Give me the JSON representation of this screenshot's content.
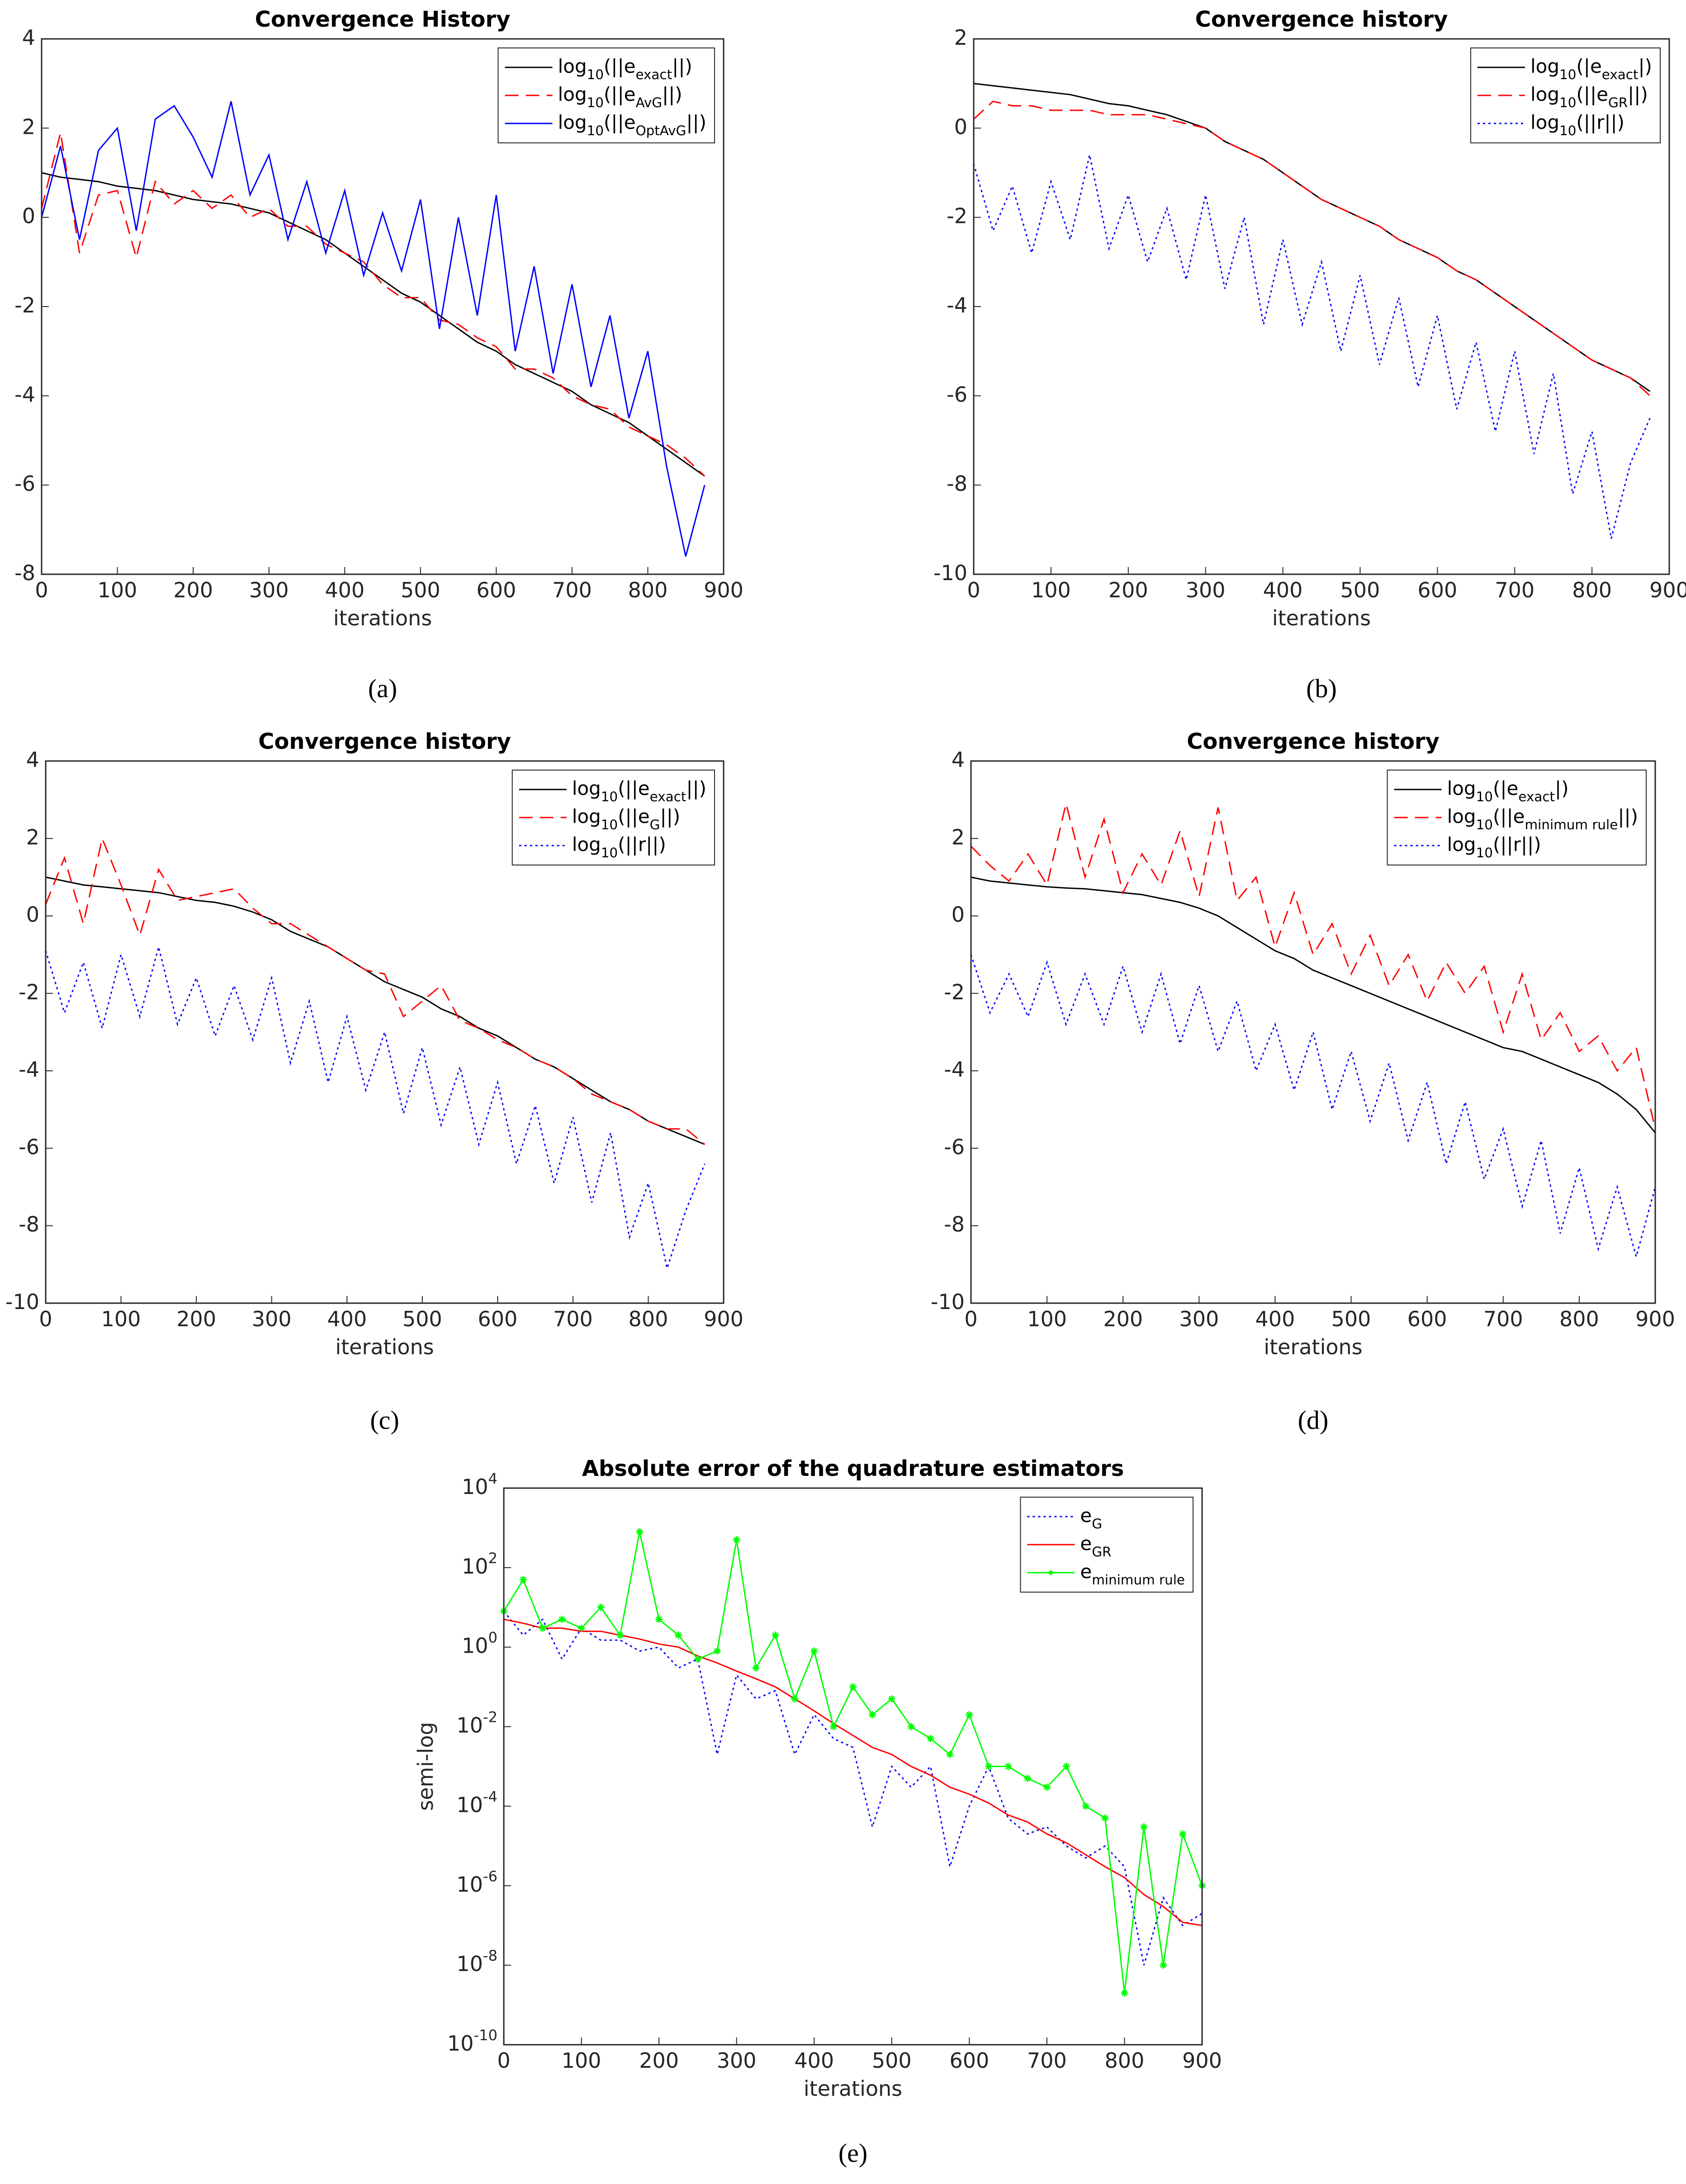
{
  "chart_data": [
    {
      "type": "line",
      "caption": "(a)",
      "title": "Convergence History",
      "x_label": "iterations",
      "xlim": [
        0,
        900
      ],
      "xticks": [
        0,
        100,
        200,
        300,
        400,
        500,
        600,
        700,
        800,
        900
      ],
      "ylim": [
        -8,
        4
      ],
      "yticks": [
        -8,
        -6,
        -4,
        -2,
        0,
        2,
        4
      ],
      "legend": "northeast",
      "x": [
        0,
        25,
        50,
        75,
        100,
        125,
        150,
        175,
        200,
        225,
        250,
        275,
        300,
        325,
        350,
        375,
        400,
        425,
        450,
        475,
        500,
        525,
        550,
        575,
        600,
        625,
        650,
        675,
        700,
        725,
        750,
        775,
        800,
        825,
        850,
        875
      ],
      "series": [
        {
          "name": "log_{10}(||e_{exact}||)",
          "color": "#000000",
          "dash": "solid",
          "values": [
            1.0,
            0.9,
            0.85,
            0.8,
            0.7,
            0.65,
            0.6,
            0.5,
            0.4,
            0.35,
            0.3,
            0.2,
            0.1,
            -0.1,
            -0.3,
            -0.5,
            -0.8,
            -1.1,
            -1.4,
            -1.7,
            -1.9,
            -2.2,
            -2.5,
            -2.8,
            -3.0,
            -3.3,
            -3.5,
            -3.7,
            -3.9,
            -4.2,
            -4.4,
            -4.6,
            -4.9,
            -5.2,
            -5.5,
            -5.8
          ]
        },
        {
          "name": "log_{10}(||e_{AvG}||)",
          "color": "#ff0000",
          "dash": "dashed",
          "values": [
            0.2,
            1.9,
            -0.8,
            0.5,
            0.6,
            -0.9,
            0.8,
            0.3,
            0.6,
            0.2,
            0.5,
            0.0,
            0.2,
            -0.2,
            -0.2,
            -0.6,
            -0.8,
            -1.0,
            -1.5,
            -1.8,
            -1.8,
            -2.3,
            -2.4,
            -2.7,
            -2.9,
            -3.4,
            -3.4,
            -3.6,
            -4.0,
            -4.2,
            -4.3,
            -4.7,
            -4.9,
            -5.1,
            -5.4,
            -5.8
          ]
        },
        {
          "name": "log_{10}(||e_{OptAvG}||)",
          "color": "#0000ff",
          "dash": "solid",
          "values": [
            0.0,
            1.6,
            -0.5,
            1.5,
            2.0,
            -0.3,
            2.2,
            2.5,
            1.8,
            0.9,
            2.6,
            0.5,
            1.4,
            -0.5,
            0.8,
            -0.8,
            0.6,
            -1.3,
            0.1,
            -1.2,
            0.4,
            -2.5,
            0.0,
            -2.2,
            0.5,
            -3.0,
            -1.1,
            -3.5,
            -1.5,
            -3.8,
            -2.2,
            -4.5,
            -3.0,
            -5.6,
            -7.6,
            -6.0
          ]
        }
      ]
    },
    {
      "type": "line",
      "caption": "(b)",
      "title": "Convergence history",
      "x_label": "iterations",
      "xlim": [
        0,
        900
      ],
      "xticks": [
        0,
        100,
        200,
        300,
        400,
        500,
        600,
        700,
        800,
        900
      ],
      "ylim": [
        -10,
        2
      ],
      "yticks": [
        -10,
        -8,
        -6,
        -4,
        -2,
        0,
        2
      ],
      "legend": "northeast",
      "x": [
        0,
        25,
        50,
        75,
        100,
        125,
        150,
        175,
        200,
        225,
        250,
        275,
        300,
        325,
        350,
        375,
        400,
        425,
        450,
        475,
        500,
        525,
        550,
        575,
        600,
        625,
        650,
        675,
        700,
        725,
        750,
        775,
        800,
        825,
        850,
        875
      ],
      "series": [
        {
          "name": "log_{10}(|e_{exact}|)",
          "color": "#000000",
          "dash": "solid",
          "values": [
            1.0,
            0.95,
            0.9,
            0.85,
            0.8,
            0.75,
            0.65,
            0.55,
            0.5,
            0.4,
            0.3,
            0.15,
            0.0,
            -0.3,
            -0.5,
            -0.7,
            -1.0,
            -1.3,
            -1.6,
            -1.8,
            -2.0,
            -2.2,
            -2.5,
            -2.7,
            -2.9,
            -3.2,
            -3.4,
            -3.7,
            -4.0,
            -4.3,
            -4.6,
            -4.9,
            -5.2,
            -5.4,
            -5.6,
            -5.9
          ]
        },
        {
          "name": "log_{10}(||e_{GR}||)",
          "color": "#ff0000",
          "dash": "dashed",
          "values": [
            0.2,
            0.6,
            0.5,
            0.5,
            0.4,
            0.4,
            0.4,
            0.3,
            0.3,
            0.3,
            0.2,
            0.1,
            0.0,
            -0.3,
            -0.5,
            -0.7,
            -1.0,
            -1.3,
            -1.6,
            -1.8,
            -2.0,
            -2.2,
            -2.5,
            -2.7,
            -2.9,
            -3.2,
            -3.4,
            -3.7,
            -4.0,
            -4.3,
            -4.6,
            -4.9,
            -5.2,
            -5.4,
            -5.6,
            -6.0
          ]
        },
        {
          "name": "log_{10}(||r||)",
          "color": "#0000ff",
          "dash": "dotted",
          "values": [
            -0.8,
            -2.3,
            -1.3,
            -2.8,
            -1.2,
            -2.5,
            -0.6,
            -2.7,
            -1.5,
            -3.0,
            -1.8,
            -3.4,
            -1.5,
            -3.6,
            -2.0,
            -4.4,
            -2.5,
            -4.4,
            -3.0,
            -5.0,
            -3.3,
            -5.3,
            -3.8,
            -5.8,
            -4.2,
            -6.3,
            -4.8,
            -6.8,
            -5.0,
            -7.3,
            -5.5,
            -8.2,
            -6.8,
            -9.2,
            -7.5,
            -6.5
          ]
        }
      ]
    },
    {
      "type": "line",
      "caption": "(c)",
      "title": "Convergence history",
      "x_label": "iterations",
      "xlim": [
        0,
        900
      ],
      "xticks": [
        0,
        100,
        200,
        300,
        400,
        500,
        600,
        700,
        800,
        900
      ],
      "ylim": [
        -10,
        4
      ],
      "yticks": [
        -10,
        -8,
        -6,
        -4,
        -2,
        0,
        2,
        4
      ],
      "legend": "northeast",
      "x": [
        0,
        25,
        50,
        75,
        100,
        125,
        150,
        175,
        200,
        225,
        250,
        275,
        300,
        325,
        350,
        375,
        400,
        425,
        450,
        475,
        500,
        525,
        550,
        575,
        600,
        625,
        650,
        675,
        700,
        725,
        750,
        775,
        800,
        825,
        850,
        875
      ],
      "series": [
        {
          "name": "log_{10}(||e_{exact}||)",
          "color": "#000000",
          "dash": "solid",
          "values": [
            1.0,
            0.9,
            0.8,
            0.75,
            0.7,
            0.65,
            0.6,
            0.5,
            0.4,
            0.35,
            0.25,
            0.1,
            -0.1,
            -0.4,
            -0.6,
            -0.8,
            -1.1,
            -1.4,
            -1.7,
            -1.9,
            -2.1,
            -2.4,
            -2.6,
            -2.9,
            -3.1,
            -3.4,
            -3.7,
            -3.9,
            -4.2,
            -4.5,
            -4.8,
            -5.0,
            -5.3,
            -5.5,
            -5.7,
            -5.9
          ]
        },
        {
          "name": "log_{10}(||e_{G}||)",
          "color": "#ff0000",
          "dash": "dashed",
          "values": [
            0.3,
            1.5,
            -0.2,
            2.0,
            0.8,
            -0.5,
            1.2,
            0.4,
            0.5,
            0.6,
            0.7,
            0.2,
            -0.2,
            -0.2,
            -0.5,
            -0.8,
            -1.1,
            -1.4,
            -1.5,
            -2.6,
            -2.2,
            -1.8,
            -2.7,
            -2.9,
            -3.2,
            -3.4,
            -3.7,
            -3.9,
            -4.2,
            -4.6,
            -4.8,
            -5.0,
            -5.3,
            -5.5,
            -5.5,
            -5.9
          ]
        },
        {
          "name": "log_{10}(||r||)",
          "color": "#0000ff",
          "dash": "dotted",
          "values": [
            -0.9,
            -2.5,
            -1.2,
            -2.9,
            -1.0,
            -2.6,
            -0.8,
            -2.8,
            -1.6,
            -3.1,
            -1.8,
            -3.2,
            -1.6,
            -3.8,
            -2.2,
            -4.3,
            -2.6,
            -4.5,
            -3.0,
            -5.1,
            -3.4,
            -5.4,
            -3.9,
            -5.9,
            -4.3,
            -6.4,
            -4.9,
            -6.9,
            -5.2,
            -7.4,
            -5.6,
            -8.3,
            -6.9,
            -9.1,
            -7.6,
            -6.4
          ]
        }
      ]
    },
    {
      "type": "line",
      "caption": "(d)",
      "title": "Convergence history",
      "x_label": "iterations",
      "xlim": [
        0,
        900
      ],
      "xticks": [
        0,
        100,
        200,
        300,
        400,
        500,
        600,
        700,
        800,
        900
      ],
      "ylim": [
        -10,
        4
      ],
      "yticks": [
        -10,
        -8,
        -6,
        -4,
        -2,
        0,
        2,
        4
      ],
      "legend": "northeast",
      "x": [
        0,
        25,
        50,
        75,
        100,
        125,
        150,
        175,
        200,
        225,
        250,
        275,
        300,
        325,
        350,
        375,
        400,
        425,
        450,
        475,
        500,
        525,
        550,
        575,
        600,
        625,
        650,
        675,
        700,
        725,
        750,
        775,
        800,
        825,
        850,
        875,
        900
      ],
      "series": [
        {
          "name": "log_{10}(|e_{exact}|)",
          "color": "#000000",
          "dash": "solid",
          "values": [
            1.0,
            0.9,
            0.85,
            0.8,
            0.75,
            0.72,
            0.7,
            0.65,
            0.6,
            0.55,
            0.45,
            0.35,
            0.2,
            0.0,
            -0.3,
            -0.6,
            -0.9,
            -1.1,
            -1.4,
            -1.6,
            -1.8,
            -2.0,
            -2.2,
            -2.4,
            -2.6,
            -2.8,
            -3.0,
            -3.2,
            -3.4,
            -3.5,
            -3.7,
            -3.9,
            -4.1,
            -4.3,
            -4.6,
            -5.0,
            -5.6
          ]
        },
        {
          "name": "log_{10}(||e_{minimum rule}||)",
          "color": "#ff0000",
          "dash": "dashed",
          "values": [
            1.8,
            1.3,
            0.9,
            1.6,
            0.8,
            2.9,
            1.0,
            2.5,
            0.6,
            1.6,
            0.8,
            2.2,
            0.5,
            2.8,
            0.4,
            1.0,
            -0.8,
            0.6,
            -1.0,
            -0.2,
            -1.5,
            -0.5,
            -1.8,
            -1.0,
            -2.2,
            -1.2,
            -2.0,
            -1.3,
            -3.0,
            -1.5,
            -3.2,
            -2.5,
            -3.5,
            -3.1,
            -4.0,
            -3.4,
            -5.5
          ]
        },
        {
          "name": "log_{10}(||r||)",
          "color": "#0000ff",
          "dash": "dotted",
          "values": [
            -1.0,
            -2.5,
            -1.5,
            -2.6,
            -1.2,
            -2.8,
            -1.5,
            -2.8,
            -1.3,
            -3.0,
            -1.5,
            -3.3,
            -1.8,
            -3.5,
            -2.2,
            -4.0,
            -2.8,
            -4.5,
            -3.0,
            -5.0,
            -3.5,
            -5.3,
            -3.8,
            -5.8,
            -4.3,
            -6.4,
            -4.8,
            -6.8,
            -5.5,
            -7.5,
            -5.8,
            -8.2,
            -6.5,
            -8.6,
            -7.0,
            -8.8,
            -7.0
          ]
        }
      ]
    },
    {
      "type": "line",
      "caption": "(e)",
      "title": "Absolute error of the quadrature estimators",
      "x_label": "iterations",
      "y_label": "semi-log",
      "xlim": [
        0,
        900
      ],
      "xticks": [
        0,
        100,
        200,
        300,
        400,
        500,
        600,
        700,
        800,
        900
      ],
      "ylim": [
        1e-10,
        10000
      ],
      "ylog": true,
      "legend": "northeast",
      "yticks": [
        {
          "value": 1e-10,
          "label": "10^{-10}"
        },
        {
          "value": 1e-08,
          "label": "10^{-8}"
        },
        {
          "value": 1e-06,
          "label": "10^{-6}"
        },
        {
          "value": 0.0001,
          "label": "10^{-4}"
        },
        {
          "value": 0.01,
          "label": "10^{-2}"
        },
        {
          "value": 1,
          "label": "10^{0}"
        },
        {
          "value": 100,
          "label": "10^{2}"
        },
        {
          "value": 10000,
          "label": "10^{4}"
        }
      ],
      "x": [
        0,
        25,
        50,
        75,
        100,
        125,
        150,
        175,
        200,
        225,
        250,
        275,
        300,
        325,
        350,
        375,
        400,
        425,
        450,
        475,
        500,
        525,
        550,
        575,
        600,
        625,
        650,
        675,
        700,
        725,
        750,
        775,
        800,
        825,
        850,
        875,
        900
      ],
      "series": [
        {
          "name": "e_{G}",
          "color": "#0000ff",
          "dash": "dotted",
          "values": [
            8,
            2,
            5,
            0.5,
            3,
            1.5,
            1.5,
            0.8,
            1,
            0.3,
            0.5,
            0.002,
            0.2,
            0.05,
            0.08,
            0.002,
            0.02,
            0.005,
            0.003,
            3e-05,
            0.001,
            0.0003,
            0.001,
            3e-06,
            0.0001,
            0.001,
            5e-05,
            2e-05,
            3e-05,
            1e-05,
            5e-06,
            1e-05,
            3e-06,
            1e-08,
            5e-07,
            1e-07,
            2e-07
          ]
        },
        {
          "name": "e_{GR}",
          "color": "#ff0000",
          "dash": "solid",
          "values": [
            5,
            4,
            3,
            3,
            2.5,
            2.5,
            2,
            1.6,
            1.2,
            1,
            0.6,
            0.4,
            0.25,
            0.16,
            0.1,
            0.05,
            0.025,
            0.012,
            0.006,
            0.003,
            0.002,
            0.001,
            0.0006,
            0.0003,
            0.0002,
            0.00012,
            6e-05,
            4e-05,
            2e-05,
            1.2e-05,
            6e-06,
            3e-06,
            1.6e-06,
            6e-07,
            3e-07,
            1.2e-07,
            1e-07
          ]
        },
        {
          "name": "e_{minimum rule}",
          "color": "#00ff00",
          "dash": "solid",
          "marker": "asterisk",
          "values": [
            8,
            50,
            3,
            5,
            3,
            10,
            2,
            800,
            5,
            2,
            0.5,
            0.8,
            500,
            0.3,
            2,
            0.05,
            0.8,
            0.01,
            0.1,
            0.02,
            0.05,
            0.01,
            0.005,
            0.002,
            0.02,
            0.001,
            0.001,
            0.0005,
            0.0003,
            0.001,
            0.0001,
            5e-05,
            2e-09,
            3e-05,
            1e-08,
            2e-05,
            1e-06
          ]
        }
      ]
    }
  ]
}
